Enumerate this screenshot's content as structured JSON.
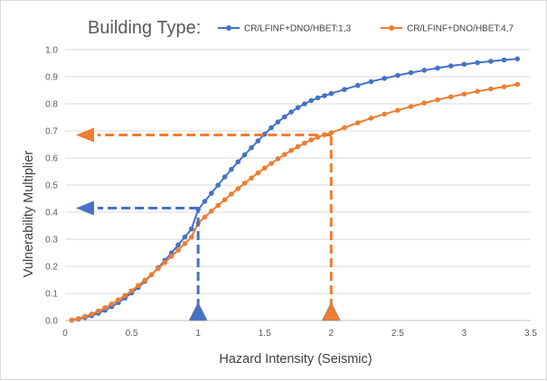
{
  "chart_data": {
    "type": "line",
    "title": "Building Type:",
    "xlabel": "Hazard Intensity (Seismic)",
    "ylabel": "Vulnerability Multiplier",
    "xlim": [
      0,
      3.5
    ],
    "ylim": [
      0,
      1.0
    ],
    "xticks": [
      "0",
      "0.5",
      "1",
      "1.5",
      "2",
      "2.5",
      "3",
      "3.5"
    ],
    "yticks": [
      "0.0",
      "0.1",
      "0.2",
      "0.3",
      "0.4",
      "0.5",
      "0.6",
      "0.7",
      "0.8",
      "0.9",
      "1.0"
    ],
    "grid": "horizontal",
    "legend_position": "top-right",
    "series": [
      {
        "name": "CR/LFINF+DNO/HBET:1,3",
        "color": "#4472c4",
        "x": [
          0.05,
          0.1,
          0.15,
          0.2,
          0.25,
          0.3,
          0.35,
          0.4,
          0.45,
          0.5,
          0.55,
          0.6,
          0.65,
          0.7,
          0.75,
          0.8,
          0.85,
          0.9,
          0.95,
          1.0,
          1.05,
          1.1,
          1.15,
          1.2,
          1.25,
          1.3,
          1.35,
          1.4,
          1.45,
          1.5,
          1.55,
          1.6,
          1.65,
          1.7,
          1.75,
          1.8,
          1.85,
          1.9,
          1.95,
          2.0,
          2.1,
          2.2,
          2.3,
          2.4,
          2.5,
          2.6,
          2.7,
          2.8,
          2.9,
          3.0,
          3.1,
          3.2,
          3.3,
          3.4
        ],
        "y": [
          0.001,
          0.005,
          0.011,
          0.018,
          0.027,
          0.038,
          0.051,
          0.066,
          0.083,
          0.102,
          0.122,
          0.145,
          0.169,
          0.195,
          0.222,
          0.25,
          0.279,
          0.308,
          0.338,
          0.41,
          0.44,
          0.47,
          0.5,
          0.53,
          0.558,
          0.586,
          0.612,
          0.638,
          0.663,
          0.688,
          0.712,
          0.733,
          0.752,
          0.77,
          0.786,
          0.8,
          0.812,
          0.822,
          0.83,
          0.838,
          0.853,
          0.868,
          0.882,
          0.894,
          0.905,
          0.915,
          0.924,
          0.932,
          0.94,
          0.946,
          0.952,
          0.957,
          0.962,
          0.966
        ]
      },
      {
        "name": "CR/LFINF+DNO/HBET:4,7",
        "color": "#ed7d31",
        "x": [
          0.05,
          0.1,
          0.15,
          0.2,
          0.25,
          0.3,
          0.35,
          0.4,
          0.45,
          0.5,
          0.55,
          0.6,
          0.65,
          0.7,
          0.75,
          0.8,
          0.85,
          0.9,
          0.95,
          1.0,
          1.05,
          1.1,
          1.15,
          1.2,
          1.25,
          1.3,
          1.35,
          1.4,
          1.45,
          1.5,
          1.55,
          1.6,
          1.65,
          1.7,
          1.75,
          1.8,
          1.85,
          1.9,
          1.95,
          2.0,
          2.1,
          2.2,
          2.3,
          2.4,
          2.5,
          2.6,
          2.7,
          2.8,
          2.9,
          3.0,
          3.1,
          3.2,
          3.3,
          3.4
        ],
        "y": [
          0.002,
          0.007,
          0.015,
          0.024,
          0.035,
          0.047,
          0.061,
          0.076,
          0.092,
          0.11,
          0.129,
          0.149,
          0.17,
          0.192,
          0.214,
          0.237,
          0.26,
          0.284,
          0.308,
          0.36,
          0.382,
          0.404,
          0.425,
          0.446,
          0.467,
          0.487,
          0.507,
          0.526,
          0.545,
          0.563,
          0.58,
          0.597,
          0.613,
          0.628,
          0.642,
          0.655,
          0.667,
          0.677,
          0.686,
          0.693,
          0.712,
          0.73,
          0.747,
          0.762,
          0.776,
          0.79,
          0.803,
          0.815,
          0.826,
          0.836,
          0.846,
          0.855,
          0.863,
          0.872
        ]
      }
    ],
    "annotations": [
      {
        "color": "#4472c4",
        "x": 1.0,
        "y": 0.415
      },
      {
        "color": "#ed7d31",
        "x": 2.0,
        "y": 0.685
      }
    ]
  }
}
